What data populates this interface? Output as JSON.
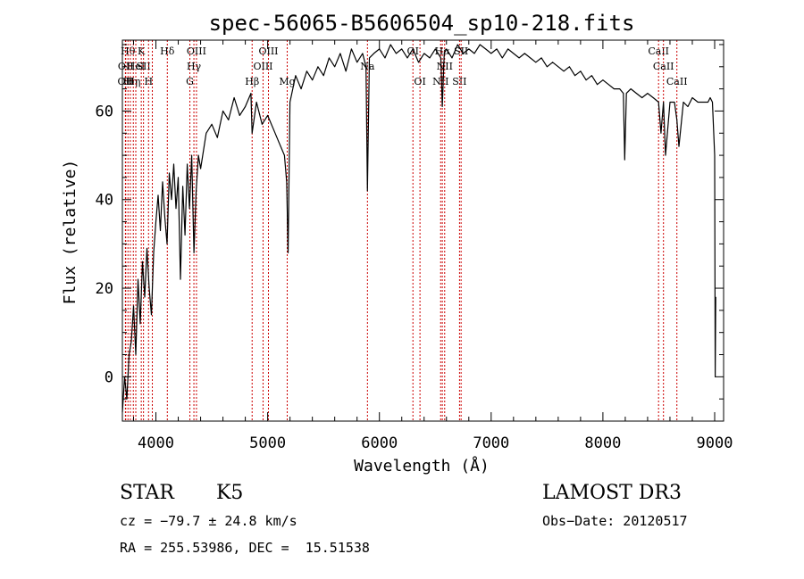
{
  "chart_data": {
    "type": "line",
    "title": "spec-56065-B5606504_sp10-218.fits",
    "xlabel": "Wavelength (Å)",
    "ylabel": "Flux (relative)",
    "xlim": [
      3700,
      9080
    ],
    "ylim": [
      -10,
      76
    ],
    "x_ticks": [
      4000,
      5000,
      6000,
      7000,
      8000,
      9000
    ],
    "y_ticks": [
      0,
      20,
      40,
      60
    ],
    "grid": false,
    "line_color": "#000000",
    "marker_color": "#cc0000",
    "series": [
      {
        "name": "flux",
        "x": [
          3700,
          3720,
          3740,
          3760,
          3780,
          3800,
          3820,
          3840,
          3860,
          3880,
          3900,
          3920,
          3940,
          3960,
          3980,
          4000,
          4020,
          4040,
          4060,
          4080,
          4100,
          4120,
          4140,
          4160,
          4180,
          4200,
          4220,
          4240,
          4260,
          4280,
          4300,
          4320,
          4340,
          4360,
          4380,
          4400,
          4450,
          4500,
          4550,
          4600,
          4650,
          4700,
          4750,
          4800,
          4850,
          4861,
          4900,
          4950,
          5000,
          5050,
          5100,
          5150,
          5170,
          5183,
          5200,
          5250,
          5300,
          5350,
          5400,
          5450,
          5500,
          5550,
          5600,
          5650,
          5700,
          5750,
          5800,
          5850,
          5880,
          5893,
          5910,
          5950,
          6000,
          6050,
          6100,
          6150,
          6200,
          6250,
          6300,
          6350,
          6400,
          6450,
          6500,
          6550,
          6563,
          6580,
          6600,
          6650,
          6700,
          6750,
          6800,
          6850,
          6900,
          6950,
          7000,
          7050,
          7100,
          7150,
          7200,
          7250,
          7300,
          7350,
          7400,
          7450,
          7500,
          7550,
          7600,
          7650,
          7700,
          7750,
          7800,
          7850,
          7900,
          7950,
          8000,
          8050,
          8100,
          8150,
          8183,
          8195,
          8210,
          8250,
          8300,
          8350,
          8400,
          8450,
          8498,
          8520,
          8542,
          8560,
          8600,
          8640,
          8662,
          8680,
          8720,
          8760,
          8800,
          8850,
          8900,
          8940,
          8960,
          8980,
          9000,
          9005,
          9010
        ],
        "y": [
          -8,
          0,
          -5,
          5,
          8,
          16,
          5,
          22,
          12,
          26,
          18,
          29,
          20,
          14,
          28,
          35,
          41,
          33,
          44,
          36,
          30,
          46,
          40,
          48,
          38,
          45,
          22,
          43,
          32,
          48,
          38,
          50,
          28,
          42,
          50,
          47,
          55,
          57,
          54,
          60,
          58,
          63,
          59,
          61,
          64,
          55,
          62,
          57,
          59,
          56,
          53,
          50,
          44,
          28,
          62,
          68,
          65,
          69,
          67,
          70,
          68,
          72,
          70,
          73,
          69,
          74,
          71,
          73,
          70,
          42,
          72,
          73,
          74,
          72,
          75,
          73,
          74,
          72,
          74,
          71,
          73,
          72,
          74,
          72,
          61,
          73,
          74,
          72,
          75,
          73,
          74,
          73,
          75,
          74,
          73,
          74,
          72,
          74,
          73,
          72,
          73,
          72,
          71,
          72,
          70,
          71,
          70,
          69,
          70,
          68,
          69,
          67,
          68,
          66,
          67,
          66,
          65,
          65,
          64,
          49,
          64,
          65,
          64,
          63,
          64,
          63,
          62,
          55,
          62,
          50,
          62,
          62,
          58,
          52,
          62,
          61,
          63,
          62,
          62,
          62,
          63,
          62,
          50,
          0,
          18
        ]
      }
    ],
    "lines": [
      {
        "x": 3727,
        "label": "OII",
        "row": 2
      },
      {
        "x": 3730,
        "label": "OII",
        "row": 1
      },
      {
        "x": 3750,
        "label": "Hθ",
        "row": 0
      },
      {
        "x": 3771,
        "label": "Hη",
        "row": 2
      },
      {
        "x": 3798,
        "label": "Hη",
        "row": 2
      },
      {
        "x": 3820,
        "label": "HeI",
        "row": 1
      },
      {
        "x": 3869,
        "label": "K",
        "row": 0
      },
      {
        "x": 3889,
        "label": "SII",
        "row": 1
      },
      {
        "x": 3934,
        "label": "H",
        "row": 2
      },
      {
        "x": 3968,
        "label": "",
        "row": 0
      },
      {
        "x": 4102,
        "label": "Hδ",
        "row": 0
      },
      {
        "x": 4304,
        "label": "G",
        "row": 2
      },
      {
        "x": 4340,
        "label": "Hγ",
        "row": 1
      },
      {
        "x": 4363,
        "label": "OIII",
        "row": 0
      },
      {
        "x": 4861,
        "label": "Hβ",
        "row": 2
      },
      {
        "x": 4959,
        "label": "OIII",
        "row": 1
      },
      {
        "x": 5007,
        "label": "OIII",
        "row": 0
      },
      {
        "x": 5175,
        "label": "Mg",
        "row": 2
      },
      {
        "x": 5893,
        "label": "Na",
        "row": 1
      },
      {
        "x": 6300,
        "label": "OI",
        "row": 0
      },
      {
        "x": 6363,
        "label": "OI",
        "row": 2
      },
      {
        "x": 6548,
        "label": "NII",
        "row": 2
      },
      {
        "x": 6563,
        "label": "Hα",
        "row": 0
      },
      {
        "x": 6584,
        "label": "NII",
        "row": 1
      },
      {
        "x": 6717,
        "label": "SII",
        "row": 2
      },
      {
        "x": 6731,
        "label": "SII",
        "row": 0
      },
      {
        "x": 8498,
        "label": "CaII",
        "row": 0
      },
      {
        "x": 8542,
        "label": "CaII",
        "row": 1
      },
      {
        "x": 8662,
        "label": "CaII",
        "row": 2
      }
    ]
  },
  "info": {
    "object_class": "STAR",
    "subclass": "K5",
    "survey": "LAMOST DR3",
    "redshift": "cz = −79.7 ± 24.8 km/s",
    "obs_date": "Obs−Date: 20120517",
    "coords": "RA = 255.53986, DEC =  15.51538"
  }
}
